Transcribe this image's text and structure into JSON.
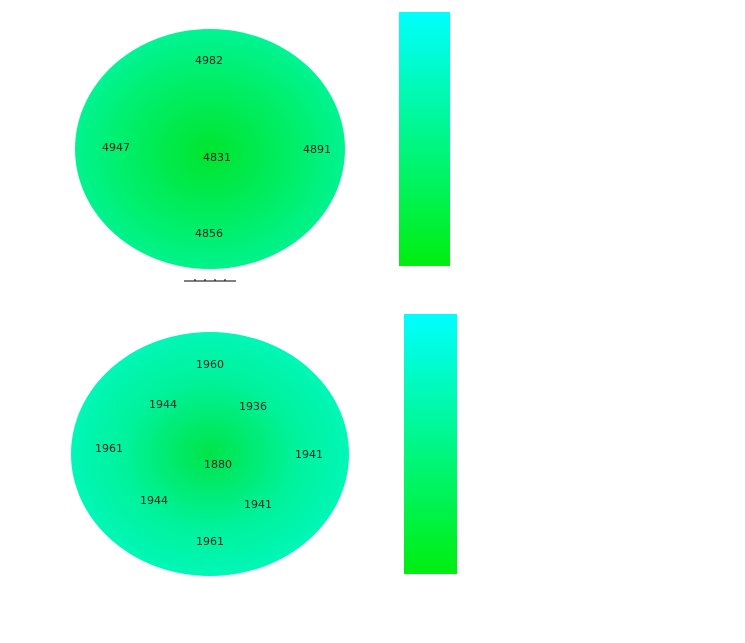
{
  "maps": [
    {
      "values": [
        4982,
        4947,
        4831,
        4891,
        4856
      ]
    },
    {
      "values": [
        1960,
        1944,
        1936,
        1961,
        1880,
        1941,
        1944,
        1941,
        1961
      ]
    }
  ]
}
